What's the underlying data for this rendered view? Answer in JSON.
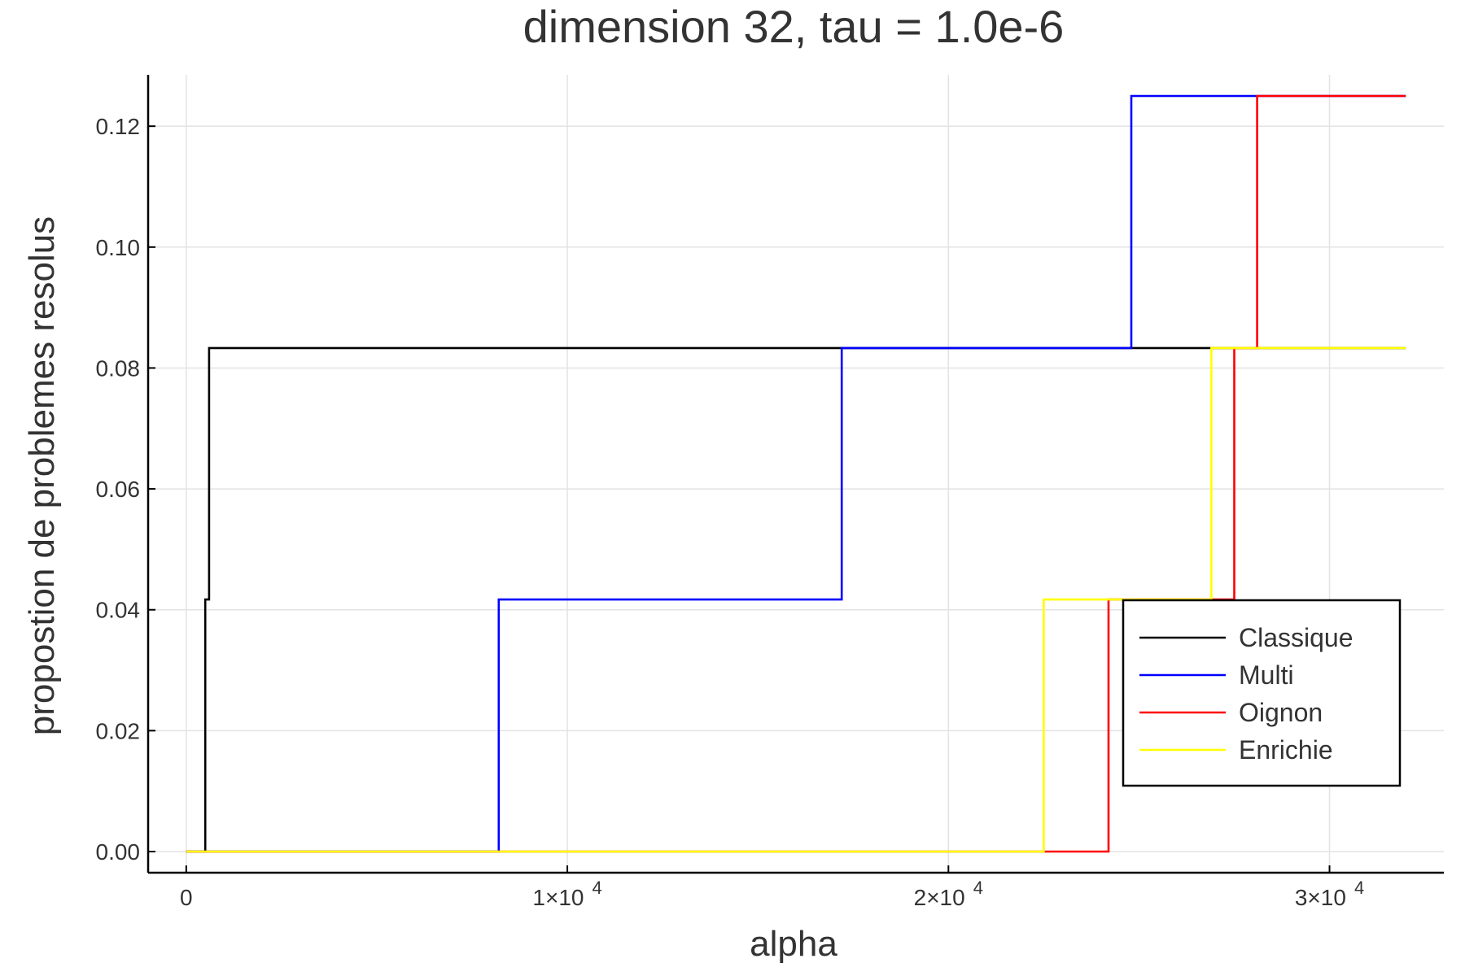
{
  "chart_data": {
    "type": "line",
    "step": true,
    "title": "dimension 32, tau = 1.0e-6",
    "xlabel": "alpha",
    "ylabel": "propostion de problemes resolus",
    "xlim": [
      -1000,
      33000
    ],
    "ylim": [
      -0.0035,
      0.1285
    ],
    "grid": true,
    "legend_position": "bottom-right",
    "x_ticks": [
      {
        "value": 0,
        "mantissa": "0",
        "exponent": ""
      },
      {
        "value": 10000,
        "mantissa": "1×10",
        "exponent": "4"
      },
      {
        "value": 20000,
        "mantissa": "2×10",
        "exponent": "4"
      },
      {
        "value": 30000,
        "mantissa": "3×10",
        "exponent": "4"
      }
    ],
    "y_ticks": [
      {
        "value": 0.0,
        "label": "0.00"
      },
      {
        "value": 0.02,
        "label": "0.02"
      },
      {
        "value": 0.04,
        "label": "0.04"
      },
      {
        "value": 0.06,
        "label": "0.06"
      },
      {
        "value": 0.08,
        "label": "0.08"
      },
      {
        "value": 0.1,
        "label": "0.10"
      },
      {
        "value": 0.12,
        "label": "0.12"
      }
    ],
    "series": [
      {
        "name": "Classique",
        "color": "#000000",
        "x": [
          0,
          500,
          500,
          600,
          600,
          32000
        ],
        "y": [
          0,
          0,
          0.0417,
          0.0417,
          0.0833,
          0.0833
        ]
      },
      {
        "name": "Multi",
        "color": "#0000ff",
        "x": [
          0,
          8200,
          8200,
          17200,
          17200,
          24800,
          24800,
          32000
        ],
        "y": [
          0,
          0,
          0.0417,
          0.0417,
          0.0833,
          0.0833,
          0.125,
          0.125
        ]
      },
      {
        "name": "Oignon",
        "color": "#ff0000",
        "x": [
          0,
          24200,
          24200,
          27500,
          27500,
          28100,
          28100,
          32000
        ],
        "y": [
          0,
          0,
          0.0417,
          0.0417,
          0.0833,
          0.0833,
          0.125,
          0.125
        ]
      },
      {
        "name": "Enrichie",
        "color": "#ffff00",
        "x": [
          0,
          22500,
          22500,
          26900,
          26900,
          32000
        ],
        "y": [
          0,
          0,
          0.0417,
          0.0417,
          0.0833,
          0.0833
        ]
      }
    ]
  }
}
